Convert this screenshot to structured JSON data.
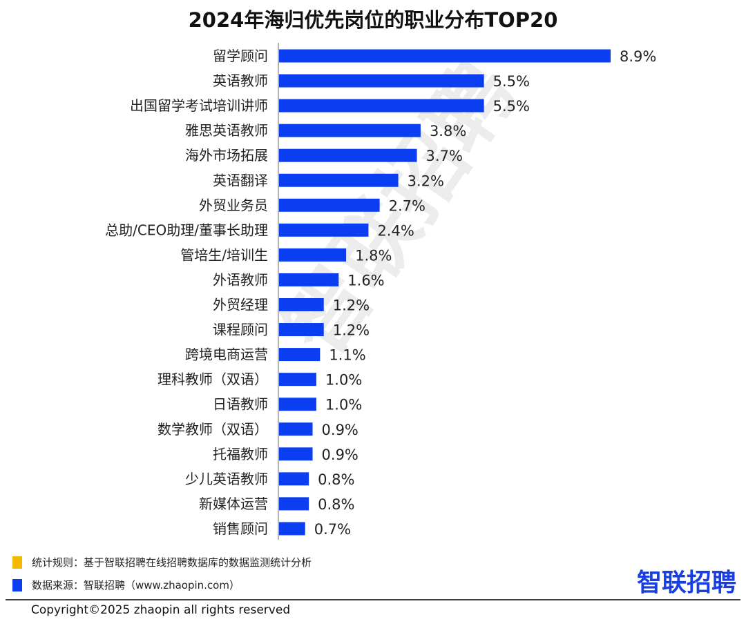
{
  "chart_data": {
    "type": "bar",
    "orientation": "horizontal",
    "title": "2024年海归优先岗位的职业分布TOP20",
    "categories": [
      "留学顾问",
      "英语教师",
      "出国留学考试培训讲师",
      "雅思英语教师",
      "海外市场拓展",
      "英语翻译",
      "外贸业务员",
      "总助/CEO助理/董事长助理",
      "管培生/培训生",
      "外语教师",
      "外贸经理",
      "课程顾问",
      "跨境电商运营",
      "理科教师（双语）",
      "日语教师",
      "数学教师（双语）",
      "托福教师",
      "少儿英语教师",
      "新媒体运营",
      "销售顾问"
    ],
    "values": [
      8.9,
      5.5,
      5.5,
      3.8,
      3.7,
      3.2,
      2.7,
      2.4,
      1.8,
      1.6,
      1.2,
      1.2,
      1.1,
      1.0,
      1.0,
      0.9,
      0.9,
      0.8,
      0.8,
      0.7
    ],
    "value_labels": [
      "8.9%",
      "5.5%",
      "5.5%",
      "3.8%",
      "3.7%",
      "3.2%",
      "2.7%",
      "2.4%",
      "1.8%",
      "1.6%",
      "1.2%",
      "1.2%",
      "1.1%",
      "1.0%",
      "1.0%",
      "0.9%",
      "0.9%",
      "0.8%",
      "0.8%",
      "0.7%"
    ],
    "unit": "%",
    "xlim": [
      0,
      8.9
    ],
    "grid": false,
    "bar_color": "#0a3ef0"
  },
  "watermark": "智联招聘",
  "legend": [
    {
      "text": "统计规则：基于智联招聘在线招聘数据库的数据监测统计分析",
      "color": "#f5b800"
    },
    {
      "text": "数据来源：智联招聘（www.zhaopin.com）",
      "color": "#0a3ef0"
    }
  ],
  "logo": "智联招聘",
  "copyright": "Copyright©2025 zhaopin all rights reserved"
}
